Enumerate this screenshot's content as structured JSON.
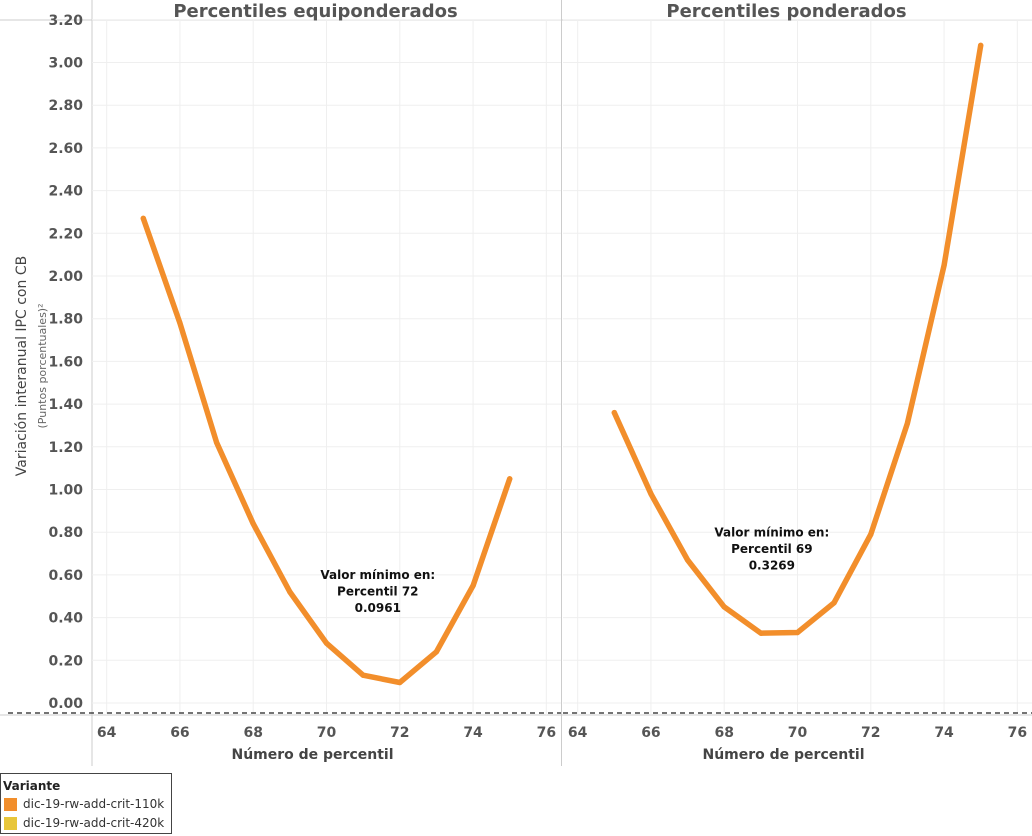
{
  "chart_data": {
    "type": "line",
    "y_axis": {
      "label": "Variación interanual IPC con CB",
      "sublabel": "(Puntos porcentuales)²",
      "ylim": [
        -0.05,
        3.26
      ],
      "ticks": [
        "3.20",
        "3.00",
        "2.80",
        "2.60",
        "2.40",
        "2.20",
        "2.00",
        "1.80",
        "1.60",
        "1.40",
        "1.20",
        "1.00",
        "0.80",
        "0.60",
        "0.40",
        "0.20",
        "0.00"
      ]
    },
    "panels": [
      {
        "title": "Percentiles equiponderados",
        "xlabel": "Número de percentil",
        "xlim": [
          63.6,
          76.4
        ],
        "x_ticks": [
          "64",
          "66",
          "68",
          "70",
          "72",
          "74",
          "76"
        ],
        "series": [
          {
            "name": "dic-19-rw-add-crit-110k",
            "color": "#F28E2B",
            "x": [
              65,
              66,
              67,
              68,
              69,
              70,
              71,
              72,
              73,
              74,
              75
            ],
            "y": [
              2.27,
              1.78,
              1.22,
              0.84,
              0.52,
              0.28,
              0.13,
              0.0961,
              0.24,
              0.55,
              1.05
            ]
          }
        ],
        "annotation": {
          "lines": [
            "Valor mínimo en:",
            "Percentil 72",
            "0.0961"
          ],
          "anchor_x": 71.4,
          "anchor_y": 0.58
        }
      },
      {
        "title": "Percentiles ponderados",
        "xlabel": "Número de percentil",
        "xlim": [
          63.6,
          76.4
        ],
        "x_ticks": [
          "64",
          "66",
          "68",
          "70",
          "72",
          "74",
          "76"
        ],
        "series": [
          {
            "name": "dic-19-rw-add-crit-110k",
            "color": "#F28E2B",
            "x": [
              65,
              66,
              67,
              68,
              69,
              70,
              71,
              72,
              73,
              74,
              75
            ],
            "y": [
              1.36,
              0.98,
              0.67,
              0.45,
              0.3269,
              0.33,
              0.47,
              0.79,
              1.31,
              2.05,
              3.08
            ]
          }
        ],
        "annotation": {
          "lines": [
            "Valor mínimo en:",
            "Percentil 69",
            "0.3269"
          ],
          "anchor_x": 69.3,
          "anchor_y": 0.78
        }
      }
    ],
    "legend": {
      "title": "Variante",
      "items": [
        {
          "label": "dic-19-rw-add-crit-110k",
          "color": "#F28E2B"
        },
        {
          "label": "dic-19-rw-add-crit-420k",
          "color": "#E8C63A"
        }
      ]
    },
    "grid": true
  }
}
